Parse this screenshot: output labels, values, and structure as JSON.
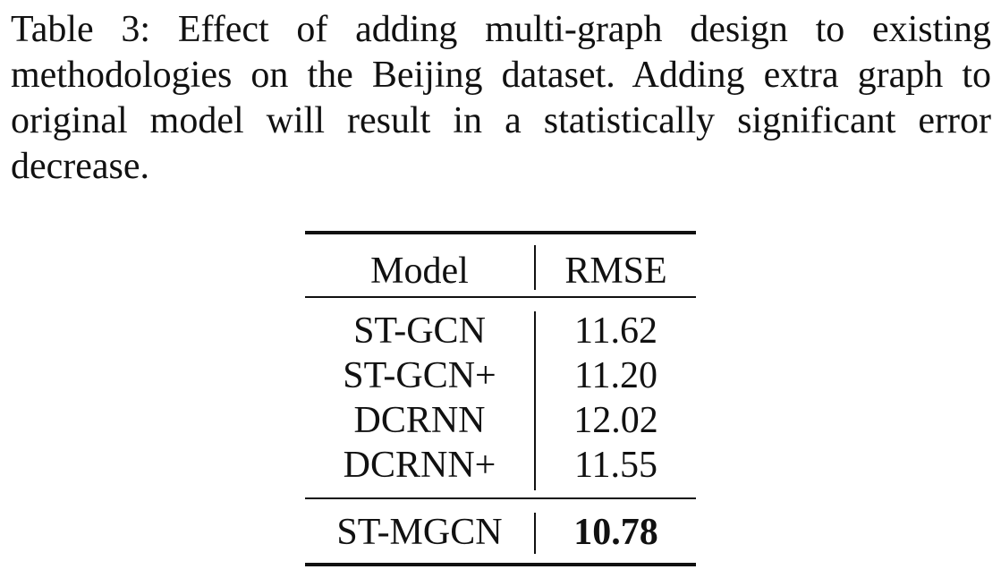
{
  "caption": {
    "lines": [
      "Table 3: Effect of adding multi-graph design to existing",
      "methodologies on the Beijing dataset. Adding extra graph to",
      "original model will result in a statistically significant error",
      "decrease."
    ]
  },
  "table": {
    "headers": {
      "model": "Model",
      "rmse": "RMSE"
    },
    "rows": [
      {
        "model": "ST-GCN",
        "rmse": "11.62"
      },
      {
        "model": "ST-GCN+",
        "rmse": "11.20"
      },
      {
        "model": "DCRNN",
        "rmse": "12.02"
      },
      {
        "model": "DCRNN+",
        "rmse": "11.55"
      }
    ],
    "footer": {
      "model": "ST-MGCN",
      "rmse": "10.78"
    }
  }
}
